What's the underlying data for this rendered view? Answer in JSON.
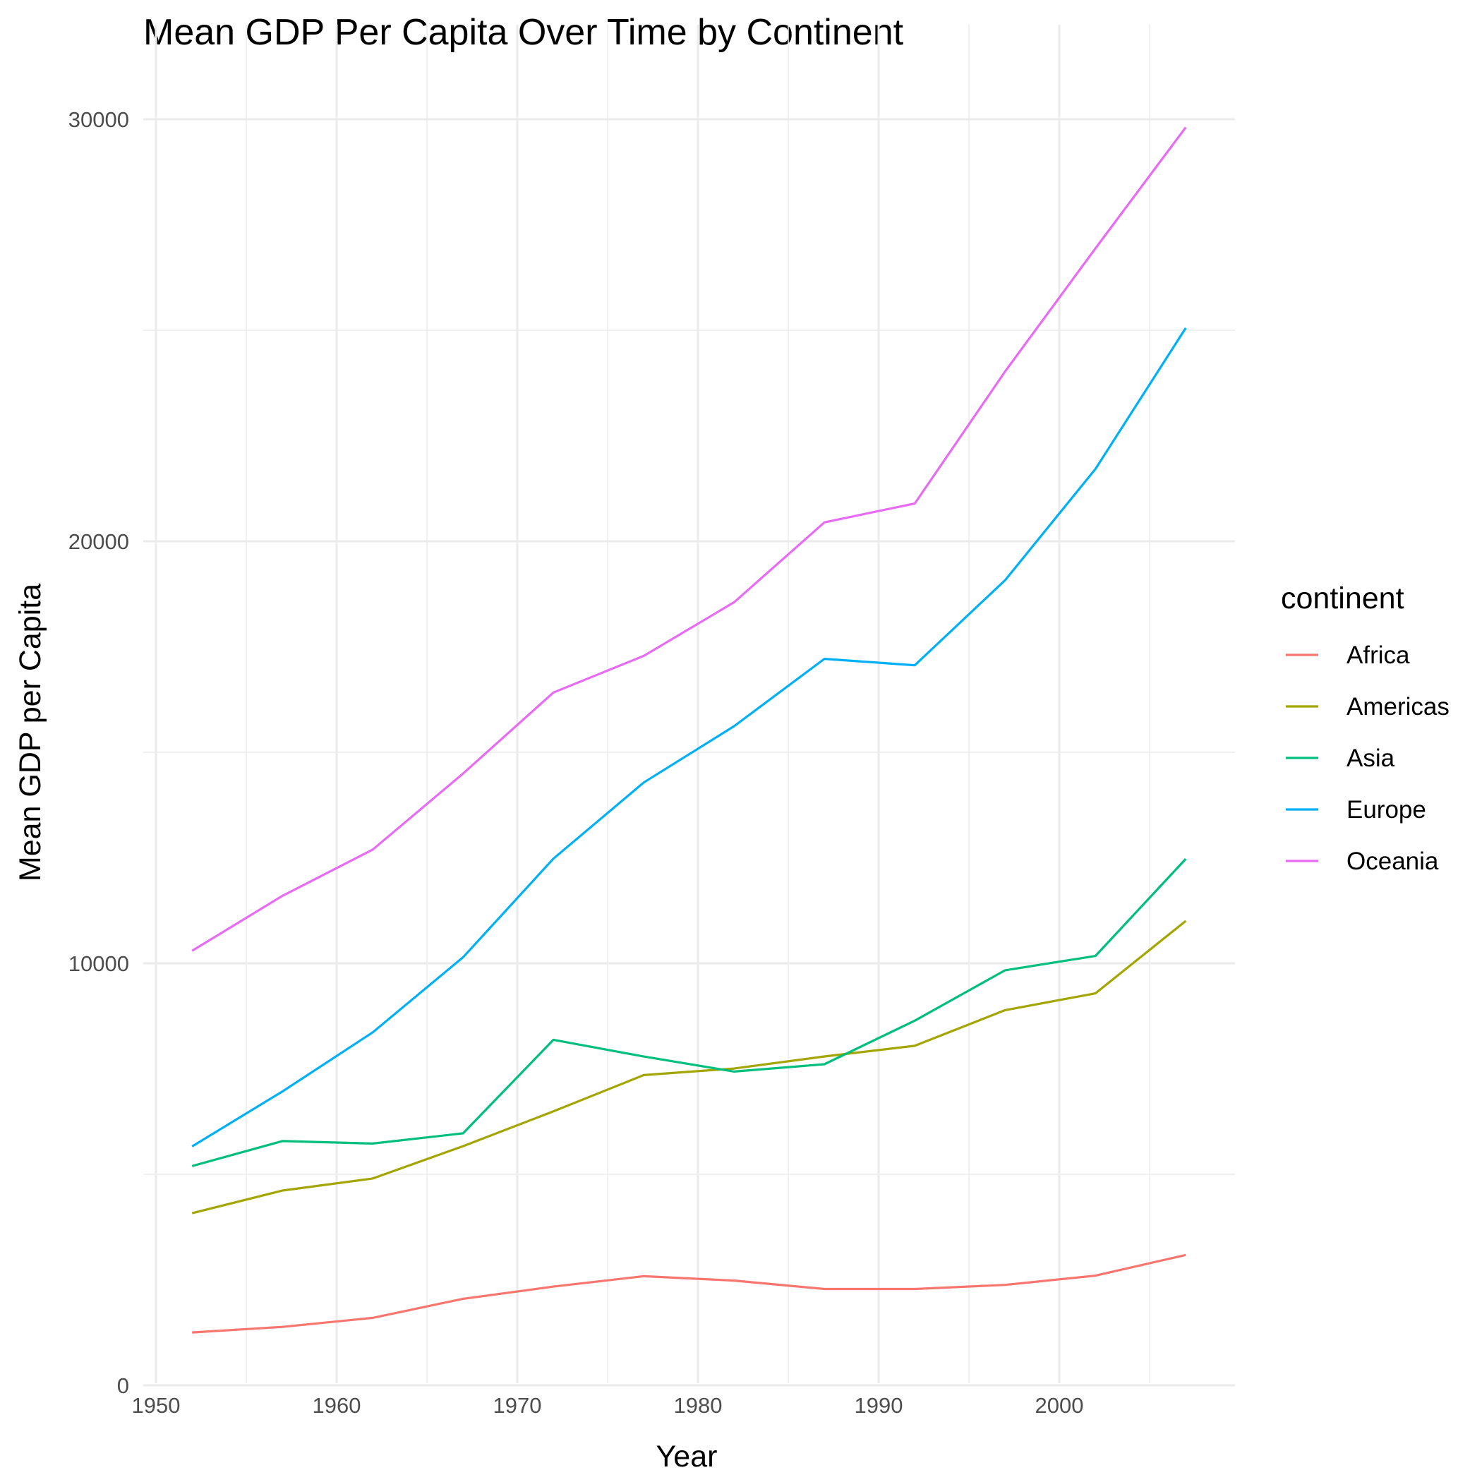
{
  "chart_data": {
    "type": "line",
    "title": "Mean GDP Per Capita Over Time by Continent",
    "xlabel": "Year",
    "ylabel": "Mean GDP per Capita",
    "xlim": [
      1950,
      2008
    ],
    "ylim": [
      0,
      30000
    ],
    "x_ticks": [
      1950,
      1960,
      1970,
      1980,
      1990,
      2000
    ],
    "y_ticks": [
      0,
      10000,
      20000,
      30000
    ],
    "grid": true,
    "legend": {
      "title": "continent",
      "position": "right"
    },
    "x": [
      1952,
      1957,
      1962,
      1967,
      1972,
      1977,
      1982,
      1987,
      1992,
      1997,
      2002,
      2007
    ],
    "series": [
      {
        "name": "Africa",
        "color": "#F8766D",
        "values": [
          1253,
          1385,
          1598,
          2050,
          2340,
          2586,
          2482,
          2283,
          2282,
          2379,
          2599,
          3089
        ]
      },
      {
        "name": "Americas",
        "color": "#A3A500",
        "values": [
          4079,
          4616,
          4902,
          5668,
          6491,
          7352,
          7507,
          7793,
          8045,
          8889,
          9288,
          11003
        ]
      },
      {
        "name": "Asia",
        "color": "#00BF7D",
        "values": [
          5195,
          5788,
          5729,
          5971,
          8187,
          7791,
          7434,
          7608,
          8640,
          9834,
          10174,
          12473
        ]
      },
      {
        "name": "Europe",
        "color": "#00B0F6",
        "values": [
          5661,
          6963,
          8365,
          10144,
          12480,
          14284,
          15618,
          17214,
          17062,
          19077,
          21712,
          25054
        ]
      },
      {
        "name": "Oceania",
        "color": "#E76BF3",
        "values": [
          10298,
          11599,
          12696,
          14496,
          16417,
          17284,
          18555,
          20448,
          20894,
          24024,
          26939,
          29810
        ]
      }
    ]
  }
}
